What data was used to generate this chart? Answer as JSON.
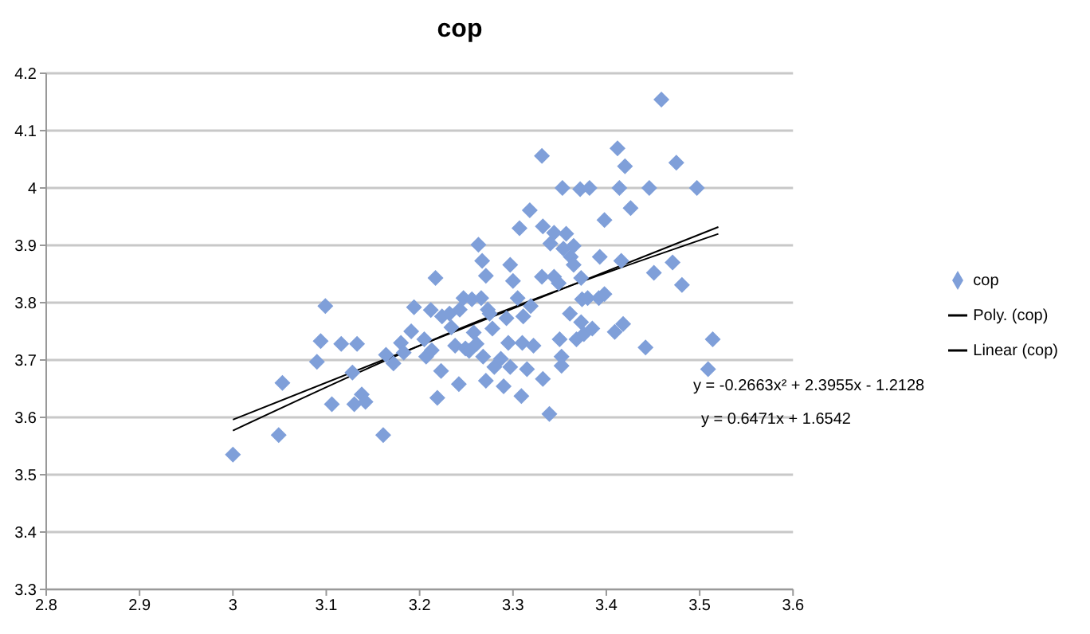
{
  "chart_data": {
    "type": "scatter",
    "title": "cop",
    "marker": "diamond",
    "grid": "y",
    "legend": "right",
    "xlim": [
      2.8,
      3.6
    ],
    "xticks": [
      2.8,
      2.9,
      3,
      3.1,
      3.2,
      3.3,
      3.4,
      3.5,
      3.6
    ],
    "ylim": [
      3.3,
      4.2
    ],
    "yticks": [
      3.3,
      3.4,
      3.5,
      3.6,
      3.7,
      3.8,
      3.9,
      4,
      4.1,
      4.2
    ],
    "annotations": [
      "y = -0.2663x² + 2.3955x - 1.2128",
      "y = 0.6471x + 1.6542"
    ],
    "series": [
      {
        "name": "cop",
        "color": "#7f9fd9",
        "x": [
          3.0,
          3.049,
          3.053,
          3.099,
          3.094,
          3.09,
          3.106,
          3.116,
          3.133,
          3.128,
          3.13,
          3.138,
          3.142,
          3.161,
          3.164,
          3.172,
          3.18,
          3.183,
          3.191,
          3.194,
          3.205,
          3.207,
          3.212,
          3.213,
          3.217,
          3.219,
          3.223,
          3.224,
          3.232,
          3.234,
          3.238,
          3.242,
          3.243,
          3.247,
          3.249,
          3.253,
          3.256,
          3.258,
          3.261,
          3.263,
          3.266,
          3.267,
          3.268,
          3.271,
          3.271,
          3.273,
          3.275,
          3.278,
          3.28,
          3.287,
          3.29,
          3.293,
          3.295,
          3.297,
          3.297,
          3.3,
          3.305,
          3.307,
          3.309,
          3.31,
          3.311,
          3.315,
          3.318,
          3.319,
          3.322,
          3.331,
          3.331,
          3.332,
          3.332,
          3.339,
          3.34,
          3.344,
          3.344,
          3.349,
          3.35,
          3.352,
          3.352,
          3.353,
          3.354,
          3.357,
          3.361,
          3.362,
          3.365,
          3.365,
          3.368,
          3.372,
          3.373,
          3.373,
          3.374,
          3.376,
          3.38,
          3.382,
          3.385,
          3.393,
          3.392,
          3.398,
          3.398,
          3.409,
          3.412,
          3.414,
          3.416,
          3.418,
          3.42,
          3.426,
          3.442,
          3.446,
          3.451,
          3.459,
          3.471,
          3.475,
          3.481,
          3.497,
          3.509,
          3.514
        ],
        "values": [
          3.535,
          3.569,
          3.66,
          3.794,
          3.733,
          3.697,
          3.623,
          3.728,
          3.728,
          3.678,
          3.623,
          3.64,
          3.627,
          3.569,
          3.709,
          3.694,
          3.73,
          3.713,
          3.75,
          3.792,
          3.736,
          3.706,
          3.787,
          3.717,
          3.843,
          3.634,
          3.681,
          3.776,
          3.781,
          3.757,
          3.725,
          3.658,
          3.788,
          3.808,
          3.72,
          3.716,
          3.806,
          3.748,
          3.728,
          3.901,
          3.808,
          3.873,
          3.706,
          3.847,
          3.664,
          3.788,
          3.781,
          3.755,
          3.688,
          3.702,
          3.654,
          3.773,
          3.73,
          3.866,
          3.688,
          3.838,
          3.808,
          3.93,
          3.637,
          3.73,
          3.776,
          3.684,
          3.961,
          3.794,
          3.725,
          4.056,
          3.845,
          3.667,
          3.933,
          3.606,
          3.903,
          3.922,
          3.845,
          3.834,
          3.736,
          3.706,
          3.69,
          4.0,
          3.894,
          3.92,
          3.781,
          3.88,
          3.899,
          3.866,
          3.736,
          3.998,
          3.843,
          3.766,
          3.806,
          3.745,
          3.808,
          4.0,
          3.755,
          3.88,
          3.808,
          3.815,
          3.944,
          3.749,
          4.069,
          4.0,
          3.873,
          3.763,
          4.038,
          3.965,
          3.722,
          4.0,
          3.852,
          4.154,
          3.87,
          4.044,
          3.831,
          4.0,
          3.684,
          3.736
        ]
      },
      {
        "name": "Poly. (cop)",
        "type": "line",
        "color": "#000000",
        "marker": "none",
        "x": [
          3.0,
          3.26,
          3.52
        ],
        "values": [
          3.577,
          3.766,
          3.92
        ]
      },
      {
        "name": "Linear (cop)",
        "type": "line",
        "color": "#000000",
        "marker": "none",
        "x": [
          3.0,
          3.52
        ],
        "values": [
          3.596,
          3.932
        ]
      }
    ]
  }
}
